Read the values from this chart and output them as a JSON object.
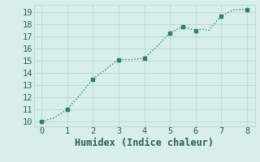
{
  "x": [
    0,
    0.5,
    1,
    1.5,
    2,
    2.5,
    3,
    3.5,
    4,
    4.5,
    5,
    5.5,
    6,
    6.25,
    6.5,
    7,
    7.5,
    8
  ],
  "y": [
    10,
    10.3,
    11,
    12.2,
    13.5,
    14.3,
    15.1,
    15.1,
    15.2,
    16.2,
    17.3,
    17.8,
    17.5,
    17.6,
    17.5,
    18.7,
    19.2,
    19.2
  ],
  "marker_x": [
    0,
    1,
    2,
    3,
    4,
    5,
    5.5,
    6,
    7,
    8
  ],
  "marker_y": [
    10,
    11,
    13.5,
    15.1,
    15.2,
    17.3,
    17.8,
    17.5,
    18.7,
    19.2
  ],
  "line_color": "#2a7f6f",
  "bg_color": "#d8eeeb",
  "grid_color": "#b8d8d2",
  "xlabel": "Humidex (Indice chaleur)",
  "xlim": [
    -0.3,
    8.3
  ],
  "ylim": [
    9.6,
    19.6
  ],
  "xticks": [
    0,
    1,
    2,
    3,
    4,
    5,
    6,
    7,
    8
  ],
  "yticks": [
    10,
    11,
    12,
    13,
    14,
    15,
    16,
    17,
    18,
    19
  ],
  "font_color": "#2a5f50",
  "tick_fontsize": 7.5,
  "xlabel_fontsize": 8.5
}
